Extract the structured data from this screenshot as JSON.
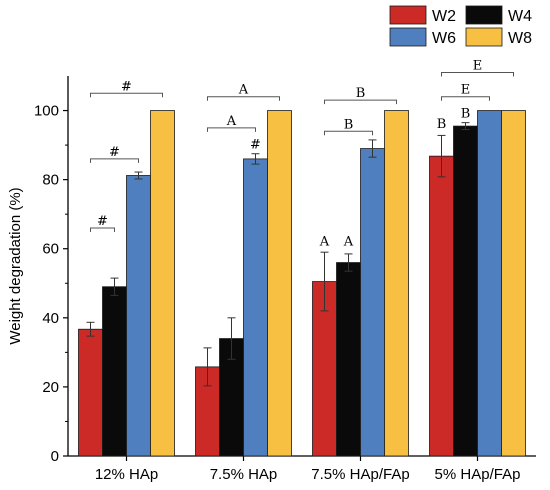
{
  "chart_data": {
    "type": "bar",
    "title": "",
    "xlabel": "",
    "ylabel": "Weight degradation (%)",
    "ylim": [
      0,
      110
    ],
    "yticks": [
      0,
      20,
      40,
      60,
      80,
      100
    ],
    "categories": [
      "12% HAp",
      "7.5% HAp",
      "7.5% HAp/FAp",
      "5% HAp/FAp"
    ],
    "series": [
      {
        "name": "W2",
        "color": "#cc2a27",
        "values": [
          36.7,
          25.8,
          50.5,
          86.8
        ],
        "errors": [
          2.0,
          5.5,
          8.5,
          6.0
        ]
      },
      {
        "name": "W4",
        "color": "#0a0a0a",
        "values": [
          49.0,
          34.0,
          56.0,
          95.5
        ],
        "errors": [
          2.5,
          6.0,
          2.5,
          1.0
        ]
      },
      {
        "name": "W6",
        "color": "#4f7fbe",
        "values": [
          81.2,
          86.0,
          89.0,
          100
        ],
        "errors": [
          1.0,
          1.5,
          2.5,
          0
        ]
      },
      {
        "name": "W8",
        "color": "#f8c042",
        "values": [
          100,
          100,
          100,
          100
        ],
        "errors": [
          0,
          0,
          0,
          0
        ]
      }
    ],
    "annotations": [
      {
        "text": "#",
        "category": 0,
        "from_series": 0,
        "to_series": 1,
        "level": 66
      },
      {
        "text": "#",
        "category": 0,
        "from_series": 0,
        "to_series": 2,
        "level": 86
      },
      {
        "text": "#",
        "category": 0,
        "from_series": 0,
        "to_series": 3,
        "level": 105
      },
      {
        "text": "A",
        "category": 1,
        "from_series": 0,
        "to_series": 2,
        "level": 95
      },
      {
        "text": "A",
        "category": 1,
        "from_series": 0,
        "to_series": 3,
        "level": 104
      },
      {
        "text": "#",
        "category": 1,
        "over_series": 2,
        "level": 89
      },
      {
        "text": "B",
        "category": 2,
        "from_series": 0,
        "to_series": 2,
        "level": 94
      },
      {
        "text": "B",
        "category": 2,
        "from_series": 0,
        "to_series": 3,
        "level": 103
      },
      {
        "text": "A",
        "category": 2,
        "over_series": 0,
        "level": 61
      },
      {
        "text": "A",
        "category": 2,
        "over_series": 1,
        "level": 61
      },
      {
        "text": "E",
        "category": 3,
        "from_series": 0,
        "to_series": 2,
        "level": 104
      },
      {
        "text": "E",
        "category": 3,
        "from_series": 0,
        "to_series": 3,
        "level": 111
      },
      {
        "text": "B",
        "category": 3,
        "over_series": 0,
        "level": 95
      },
      {
        "text": "B",
        "category": 3,
        "over_series": 1,
        "level": 98
      }
    ],
    "legend_position": "top-right",
    "grid": false
  }
}
